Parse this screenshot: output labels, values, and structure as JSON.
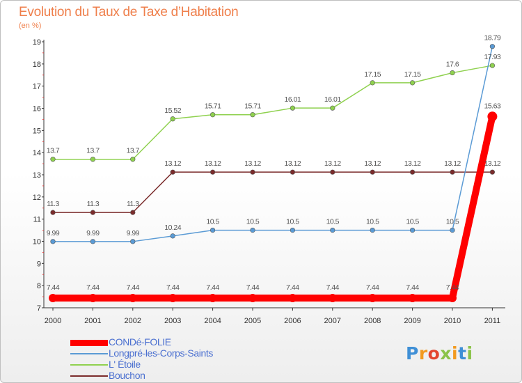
{
  "title": "Evolution du Taux de Taxe d’Habitation",
  "unit": "(en %)",
  "logo": {
    "text": "Proxiti",
    "colors": [
      "#3f8fd6",
      "#f29a1f",
      "#e3452e",
      "#8bc34a",
      "#f29a1f",
      "#3f8fd6",
      "#8bc34a"
    ]
  },
  "chart_data": {
    "type": "line",
    "x": [
      "2000",
      "2001",
      "2002",
      "2003",
      "2004",
      "2005",
      "2006",
      "2007",
      "2008",
      "2009",
      "2010",
      "2011"
    ],
    "ylim": [
      7,
      19
    ],
    "yticks": [
      "7",
      "8",
      "9",
      "10",
      "11",
      "12",
      "13",
      "14",
      "15",
      "16",
      "17",
      "18",
      "19"
    ],
    "grid": false,
    "legend_position": "bottom-left",
    "series": [
      {
        "name": "CONDé-FOLIE",
        "color": "#ff0000",
        "values": [
          7.44,
          7.44,
          7.44,
          7.44,
          7.44,
          7.44,
          7.44,
          7.44,
          7.44,
          7.44,
          7.44,
          15.63
        ],
        "labels": [
          "7.44",
          "7.44",
          "7.44",
          "7.44",
          "7.44",
          "7.44",
          "7.44",
          "7.44",
          "7.44",
          "7.44",
          "7.44",
          "15.63"
        ]
      },
      {
        "name": "Longpré-les-Corps-Saints",
        "color": "#5b9bd5",
        "values": [
          9.99,
          9.99,
          9.99,
          10.24,
          10.5,
          10.5,
          10.5,
          10.5,
          10.5,
          10.5,
          10.5,
          18.79
        ],
        "labels": [
          "9.99",
          "9.99",
          "9.99",
          "10.24",
          "10.5",
          "10.5",
          "10.5",
          "10.5",
          "10.5",
          "10.5",
          "10.5",
          "18.79"
        ]
      },
      {
        "name": "L' Étoile",
        "color": "#8fd14f",
        "values": [
          13.7,
          13.7,
          13.7,
          15.52,
          15.71,
          15.71,
          16.01,
          16.01,
          17.15,
          17.15,
          17.6,
          17.93
        ],
        "labels": [
          "13.7",
          "13.7",
          "13.7",
          "15.52",
          "15.71",
          "15.71",
          "16.01",
          "16.01",
          "17.15",
          "17.15",
          "17.6",
          "17.93"
        ]
      },
      {
        "name": "Bouchon",
        "color": "#7b2c2c",
        "values": [
          11.3,
          11.3,
          11.3,
          13.12,
          13.12,
          13.12,
          13.12,
          13.12,
          13.12,
          13.12,
          13.12,
          13.12
        ],
        "labels": [
          "11.3",
          "11.3",
          "11.3",
          "13.12",
          "13.12",
          "13.12",
          "13.12",
          "13.12",
          "13.12",
          "13.12",
          "13.12",
          "13.12"
        ]
      }
    ]
  }
}
